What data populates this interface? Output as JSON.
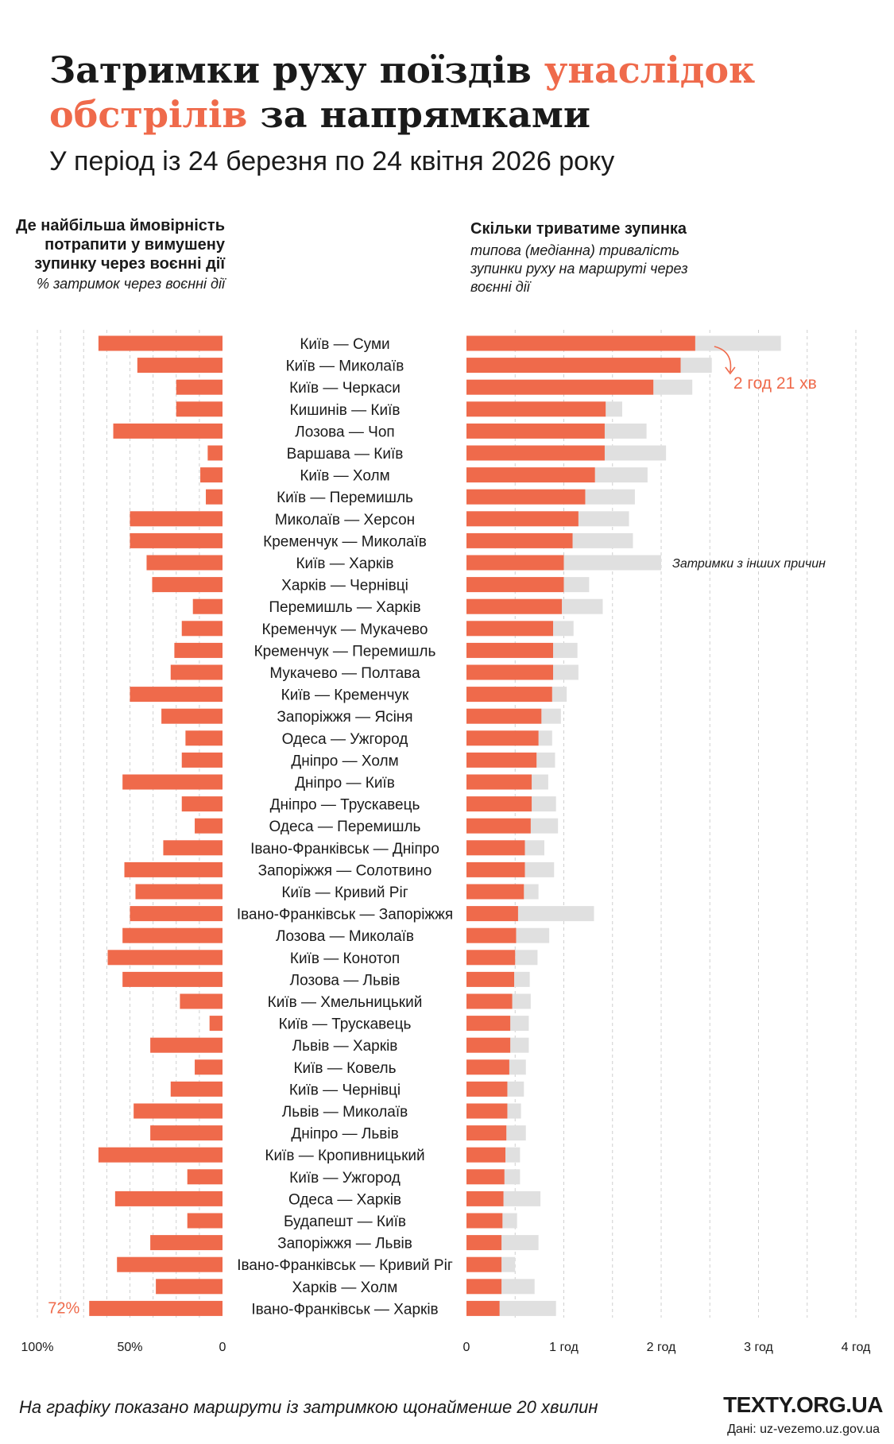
{
  "header": {
    "title_part1": "Затримки руху поїздів ",
    "title_part2": "унаслідок обстрілів",
    "title_part3": " за напрямками",
    "subtitle": "У період із 24 березня по 24 квітня 2026 року"
  },
  "left_panel": {
    "heading": "Де найбільша ймовірність потрапити у вимушену зупинку через воєнні дії",
    "subheading": "% затримок через воєнні дії"
  },
  "right_panel": {
    "heading": "Скільки триватиме зупинка",
    "subheading": "типова (медіанна) тривалість зупинки руху на маршруті через воєнні дії"
  },
  "footer": {
    "note": "На графіку показано маршрути із затримкою щонайменше 20 хвилин",
    "brand": "TEXTY.ORG.UA",
    "source": "Дані: uz-vezemo.uz.gov.ua"
  },
  "colors": {
    "accent": "#ef6a4b",
    "other": "#e0e0e0",
    "grid": "#cfcfcf",
    "text": "#1a1a1a"
  },
  "chart_data": [
    {
      "type": "bar",
      "orientation": "horizontal",
      "direction": "reversed",
      "xlim": [
        100,
        0
      ],
      "x_ticks": [
        "100%",
        "50%",
        "0"
      ],
      "annotation": "72%",
      "grid": true,
      "categories": [
        "Київ — Суми",
        "Київ — Миколаїв",
        "Київ — Черкаси",
        "Кишинів — Київ",
        "Лозова — Чоп",
        "Варшава — Київ",
        "Київ — Холм",
        "Київ — Перемишль",
        "Миколаїв — Херсон",
        "Кременчук — Миколаїв",
        "Київ — Харків",
        "Харків — Чернівці",
        "Перемишль — Харків",
        "Кременчук — Мукачево",
        "Кременчук — Перемишль",
        "Мукачево — Полтава",
        "Київ — Кременчук",
        "Запоріжжя — Ясіня",
        "Одеса — Ужгород",
        "Дніпро — Холм",
        "Дніпро — Київ",
        "Дніпро — Трускавець",
        "Одеса — Перемишль",
        "Івано-Франківськ — Дніпро",
        "Запоріжжя — Солотвино",
        "Київ — Кривий Ріг",
        "Івано-Франківськ — Запоріжжя",
        "Лозова — Миколаїв",
        "Київ — Конотоп",
        "Лозова — Львів",
        "Київ — Хмельницький",
        "Київ — Трускавець",
        "Львів — Харків",
        "Київ — Ковель",
        "Київ — Чернівці",
        "Львів — Миколаїв",
        "Дніпро — Львів",
        "Київ — Кропивницький",
        "Київ — Ужгород",
        "Одеса — Харків",
        "Будапешт — Київ",
        "Запоріжжя — Львів",
        "Івано-Франківськ — Кривий Ріг",
        "Харків — Холм",
        "Івано-Франківськ — Харків"
      ],
      "series": [
        {
          "values": [
            67,
            46,
            25,
            25,
            59,
            8,
            12,
            9,
            50,
            50,
            41,
            38,
            16,
            22,
            26,
            28,
            50,
            33,
            20,
            22,
            54,
            22,
            15,
            32,
            53,
            47,
            50,
            54,
            62,
            54,
            23,
            7,
            39,
            15,
            28,
            48,
            39,
            67,
            19,
            58,
            19,
            39,
            57,
            36,
            72
          ]
        }
      ]
    },
    {
      "type": "bar",
      "orientation": "horizontal",
      "stacked": true,
      "xlim": [
        0,
        4
      ],
      "x_ticks": [
        "0",
        "1 год",
        "2 год",
        "3 год",
        "4 год"
      ],
      "annotation": "2 год 21 хв",
      "annotation_other": "Затримки з інших причин",
      "grid": true,
      "series": [
        {
          "values": [
            2.35,
            2.2,
            1.92,
            1.43,
            1.42,
            1.42,
            1.32,
            1.22,
            1.15,
            1.09,
            1.0,
            1.0,
            0.98,
            0.89,
            0.89,
            0.89,
            0.88,
            0.77,
            0.74,
            0.72,
            0.67,
            0.67,
            0.66,
            0.6,
            0.6,
            0.59,
            0.53,
            0.51,
            0.5,
            0.49,
            0.47,
            0.45,
            0.45,
            0.44,
            0.42,
            0.42,
            0.41,
            0.4,
            0.39,
            0.38,
            0.37,
            0.36,
            0.36,
            0.36,
            0.34
          ]
        },
        {
          "name": "Затримки з інших причин",
          "values": [
            0.88,
            0.32,
            0.4,
            0.17,
            0.43,
            0.63,
            0.54,
            0.51,
            0.52,
            0.62,
            1.0,
            0.26,
            0.42,
            0.21,
            0.25,
            0.26,
            0.15,
            0.2,
            0.14,
            0.19,
            0.17,
            0.25,
            0.28,
            0.2,
            0.3,
            0.15,
            0.78,
            0.34,
            0.23,
            0.16,
            0.19,
            0.19,
            0.19,
            0.17,
            0.17,
            0.14,
            0.2,
            0.15,
            0.16,
            0.38,
            0.15,
            0.38,
            0.14,
            0.34,
            0.58
          ]
        }
      ]
    }
  ]
}
